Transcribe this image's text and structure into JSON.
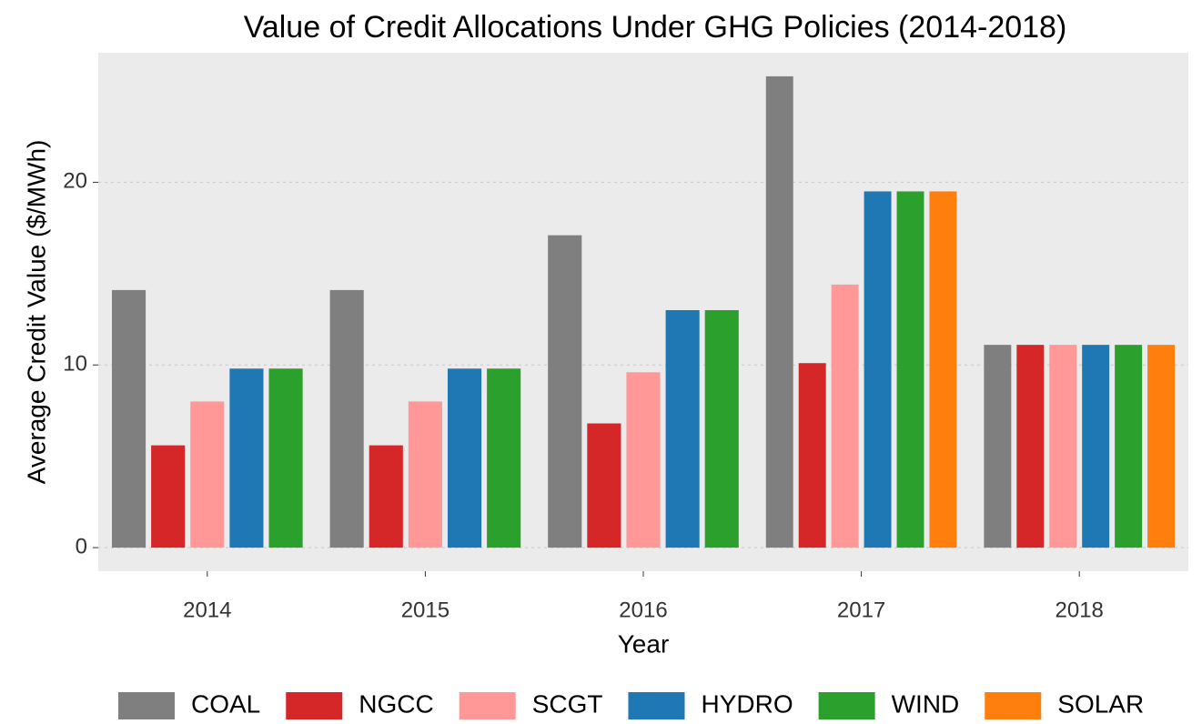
{
  "chart_data": {
    "type": "bar",
    "title": "Value of Credit Allocations Under GHG Policies (2014-2018)",
    "x_label": "Year",
    "y_label": "Average Credit Value ($/MWh)",
    "categories": [
      "2014",
      "2015",
      "2016",
      "2017",
      "2018"
    ],
    "series": [
      {
        "name": "COAL",
        "color": "#7f7f7f",
        "values": [
          14.1,
          14.1,
          17.1,
          25.8,
          11.1
        ]
      },
      {
        "name": "NGCC",
        "color": "#d62728",
        "values": [
          5.6,
          5.6,
          6.8,
          10.1,
          11.1
        ]
      },
      {
        "name": "SCGT",
        "color": "#ff9896",
        "values": [
          8.0,
          8.0,
          9.6,
          14.4,
          11.1
        ]
      },
      {
        "name": "HYDRO",
        "color": "#1f77b4",
        "values": [
          9.8,
          9.8,
          13.0,
          19.5,
          11.1
        ]
      },
      {
        "name": "WIND",
        "color": "#2ca02c",
        "values": [
          9.8,
          9.8,
          13.0,
          19.5,
          11.1
        ]
      },
      {
        "name": "SOLAR",
        "color": "#ff7f0e",
        "values": [
          null,
          null,
          null,
          19.5,
          11.1
        ]
      }
    ],
    "ylim": [
      -1.29,
      27.09
    ],
    "yticks": [
      0,
      10,
      20
    ],
    "grid": true,
    "legend": "bottom"
  }
}
